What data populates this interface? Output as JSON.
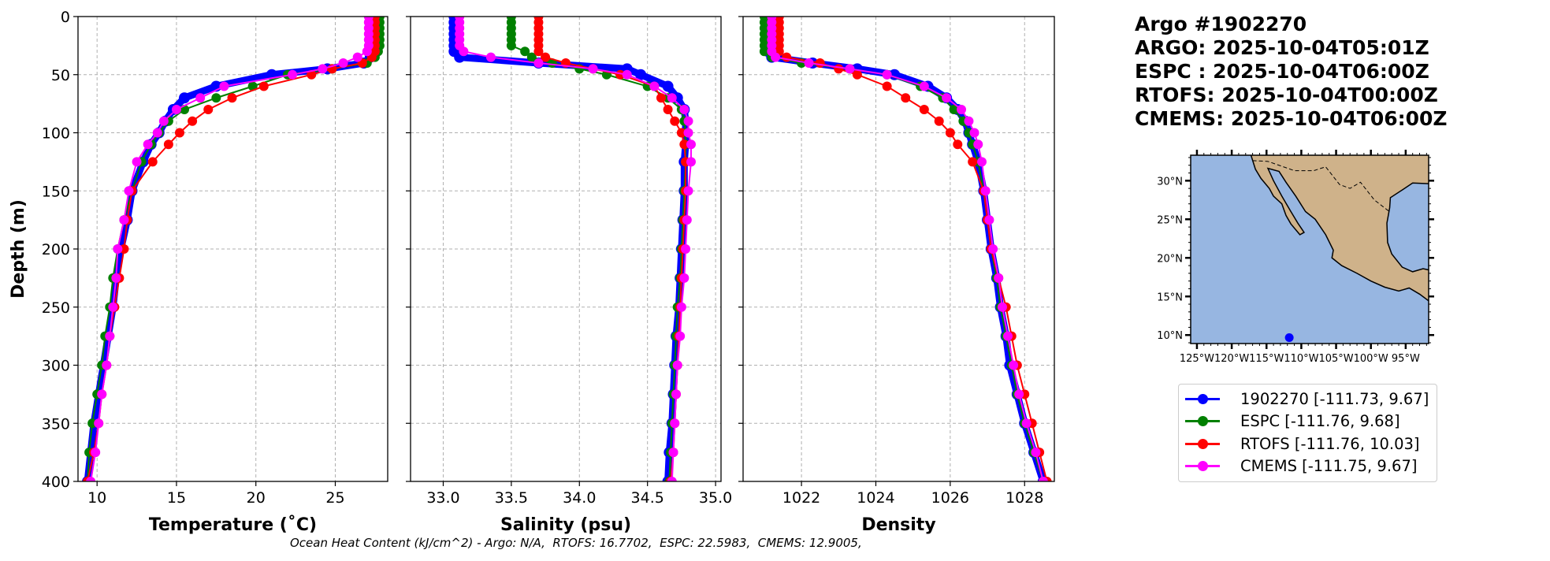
{
  "header": {
    "lines": [
      "Argo #1902270",
      "ARGO: 2025-10-04T05:01Z",
      "ESPC : 2025-10-04T06:00Z",
      "RTOFS: 2025-10-04T00:00Z",
      "CMEMS: 2025-10-04T06:00Z"
    ]
  },
  "footer": "Ocean Heat Content (kJ/cm^2) - Argo: N/A,  RTOFS: 16.7702,  ESPC: 22.5983,  CMEMS: 12.9005,",
  "legend": [
    {
      "label": "1902270 [-111.73, 9.67]",
      "color": "#0000ff"
    },
    {
      "label": "ESPC [-111.76, 9.68]",
      "color": "#008000"
    },
    {
      "label": "RTOFS [-111.76, 10.03]",
      "color": "#ff0000"
    },
    {
      "label": "CMEMS [-111.75, 9.67]",
      "color": "#ff00ff"
    }
  ],
  "map": {
    "lon_ticks": [
      "125°W",
      "120°W",
      "115°W",
      "110°W",
      "105°W",
      "100°W",
      "95°W"
    ],
    "lon_values": [
      -125,
      -120,
      -115,
      -110,
      -105,
      -100,
      -95
    ],
    "lat_ticks": [
      "30°N",
      "25°N",
      "20°N",
      "15°N",
      "10°N"
    ],
    "lat_values": [
      30,
      25,
      20,
      15,
      10
    ],
    "lon_range": [
      -125.9,
      -91.7
    ],
    "lat_range": [
      8.9,
      33.3
    ],
    "float_position": [
      -111.73,
      9.67
    ],
    "ocean_color": "#97b6e1",
    "land_color": "#cfb28a"
  },
  "chart_data": [
    {
      "type": "line",
      "xlabel": "Temperature (˚C)",
      "ylabel": "Depth (m)",
      "xlim": [
        8.8,
        28.3
      ],
      "ylim": [
        400,
        0
      ],
      "xticks": [
        "10",
        "15",
        "20",
        "25"
      ],
      "xtick_values": [
        10,
        15,
        20,
        25
      ],
      "yticks": [
        "0",
        "50",
        "100",
        "150",
        "200",
        "250",
        "300",
        "350",
        "400"
      ],
      "ytick_values": [
        0,
        50,
        100,
        150,
        200,
        250,
        300,
        350,
        400
      ],
      "grid": true,
      "field": "temperature"
    },
    {
      "type": "line",
      "xlabel": "Salinity (psu)",
      "xlim": [
        32.76,
        35.04
      ],
      "ylim": [
        400,
        0
      ],
      "xticks": [
        "33.0",
        "33.5",
        "34.0",
        "34.5",
        "35.0"
      ],
      "xtick_values": [
        33.0,
        33.5,
        34.0,
        34.5,
        35.0
      ],
      "ytick_values": [
        0,
        50,
        100,
        150,
        200,
        250,
        300,
        350,
        400
      ],
      "grid": true,
      "field": "salinity"
    },
    {
      "type": "line",
      "xlabel": "Density",
      "xlim": [
        1020.43,
        1028.8
      ],
      "ylim": [
        400,
        0
      ],
      "xticks": [
        "1022",
        "1024",
        "1026",
        "1028"
      ],
      "xtick_values": [
        1022,
        1024,
        1026,
        1028
      ],
      "ytick_values": [
        0,
        50,
        100,
        150,
        200,
        250,
        300,
        350,
        400
      ],
      "grid": true,
      "field": "density"
    }
  ],
  "series": [
    {
      "name": "1902270",
      "color": "#0000ff",
      "depth": [
        0,
        5,
        10,
        15,
        20,
        25,
        30,
        35,
        40,
        45,
        50,
        60,
        70,
        80,
        90,
        100,
        110,
        125,
        150,
        175,
        200,
        225,
        250,
        275,
        300,
        325,
        350,
        375,
        400
      ],
      "temperature": [
        27.5,
        27.5,
        27.5,
        27.5,
        27.5,
        27.5,
        27.4,
        27.2,
        26.8,
        24.5,
        21,
        17.5,
        15.5,
        14.8,
        14.3,
        13.9,
        13.4,
        12.9,
        12.2,
        11.9,
        11.5,
        11.2,
        11,
        10.7,
        10.4,
        10.1,
        9.8,
        9.6,
        9.4
      ],
      "salinity": [
        33.08,
        33.08,
        33.08,
        33.08,
        33.08,
        33.08,
        33.08,
        33.12,
        33.7,
        34.35,
        34.45,
        34.65,
        34.72,
        34.77,
        34.78,
        34.78,
        34.78,
        34.77,
        34.77,
        34.76,
        34.75,
        34.74,
        34.73,
        34.71,
        34.7,
        34.69,
        34.68,
        34.66,
        34.65
      ],
      "density": [
        1021.1,
        1021.1,
        1021.1,
        1021.1,
        1021.1,
        1021.1,
        1021.1,
        1021.2,
        1022.3,
        1023.5,
        1024.5,
        1025.4,
        1025.9,
        1026.2,
        1026.4,
        1026.5,
        1026.6,
        1026.75,
        1026.9,
        1027.0,
        1027.1,
        1027.25,
        1027.35,
        1027.5,
        1027.6,
        1027.8,
        1028.0,
        1028.25,
        1028.5
      ]
    },
    {
      "name": "ESPC",
      "color": "#008000",
      "depth": [
        0,
        5,
        10,
        15,
        20,
        25,
        30,
        35,
        40,
        45,
        50,
        60,
        70,
        80,
        90,
        100,
        110,
        125,
        150,
        175,
        200,
        225,
        250,
        275,
        300,
        325,
        350,
        375,
        400
      ],
      "temperature": [
        27.8,
        27.8,
        27.8,
        27.8,
        27.8,
        27.8,
        27.7,
        27.5,
        27,
        24.8,
        22,
        19.8,
        17.5,
        15.5,
        14.5,
        13.9,
        13.4,
        12.8,
        12.2,
        11.7,
        11.3,
        11.0,
        10.8,
        10.5,
        10.3,
        10.0,
        9.7,
        9.5,
        9.4
      ],
      "salinity": [
        33.5,
        33.5,
        33.5,
        33.5,
        33.5,
        33.5,
        33.6,
        33.65,
        33.8,
        34.0,
        34.2,
        34.5,
        34.65,
        34.75,
        34.77,
        34.78,
        34.78,
        34.78,
        34.77,
        34.76,
        34.75,
        34.74,
        34.72,
        34.71,
        34.7,
        34.69,
        34.68,
        34.67,
        34.66
      ],
      "density": [
        1021.0,
        1021.0,
        1021.0,
        1021.0,
        1021.0,
        1021.0,
        1021.0,
        1021.2,
        1022.0,
        1023.3,
        1024.3,
        1025.2,
        1025.8,
        1026.1,
        1026.35,
        1026.5,
        1026.6,
        1026.75,
        1026.9,
        1027.0,
        1027.1,
        1027.25,
        1027.35,
        1027.5,
        1027.65,
        1027.8,
        1028.0,
        1028.25,
        1028.5
      ]
    },
    {
      "name": "RTOFS",
      "color": "#ff0000",
      "depth": [
        0,
        5,
        10,
        15,
        20,
        25,
        30,
        35,
        40,
        45,
        50,
        60,
        70,
        80,
        90,
        100,
        110,
        125,
        150,
        175,
        200,
        225,
        250,
        275,
        300,
        325,
        350,
        375,
        400
      ],
      "temperature": [
        27.5,
        27.5,
        27.5,
        27.5,
        27.5,
        27.5,
        27.5,
        27.3,
        26.7,
        24.8,
        23.5,
        20.5,
        18.5,
        17,
        16,
        15.2,
        14.5,
        13.5,
        12.2,
        11.9,
        11.7,
        11.4,
        11.1,
        10.8,
        10.6,
        10.3,
        10.1,
        9.8,
        9.4
      ],
      "salinity": [
        33.7,
        33.7,
        33.7,
        33.7,
        33.7,
        33.7,
        33.7,
        33.75,
        33.9,
        34.1,
        34.3,
        34.55,
        34.6,
        34.65,
        34.7,
        34.75,
        34.77,
        34.78,
        34.78,
        34.77,
        34.76,
        34.75,
        34.74,
        34.73,
        34.72,
        34.71,
        34.7,
        34.69,
        34.67
      ],
      "density": [
        1021.4,
        1021.4,
        1021.4,
        1021.4,
        1021.4,
        1021.4,
        1021.4,
        1021.6,
        1022.5,
        1023.0,
        1023.5,
        1024.3,
        1024.8,
        1025.3,
        1025.7,
        1026.0,
        1026.2,
        1026.6,
        1026.9,
        1027.0,
        1027.1,
        1027.3,
        1027.5,
        1027.65,
        1027.8,
        1028.0,
        1028.2,
        1028.4,
        1028.6
      ]
    },
    {
      "name": "CMEMS",
      "color": "#ff00ff",
      "depth": [
        0,
        5,
        10,
        15,
        20,
        25,
        30,
        35,
        40,
        45,
        50,
        60,
        70,
        80,
        90,
        100,
        110,
        125,
        150,
        175,
        200,
        225,
        250,
        275,
        300,
        325,
        350,
        375,
        400
      ],
      "temperature": [
        27.1,
        27.1,
        27.1,
        27.1,
        27.1,
        27.1,
        27.0,
        26.4,
        25.5,
        24.2,
        22.3,
        18,
        16.5,
        15,
        14.2,
        13.8,
        13.2,
        12.5,
        12,
        11.7,
        11.3,
        11.2,
        11,
        10.8,
        10.6,
        10.3,
        10.1,
        9.9,
        9.6
      ],
      "salinity": [
        33.12,
        33.12,
        33.12,
        33.12,
        33.12,
        33.12,
        33.15,
        33.35,
        33.7,
        34.1,
        34.35,
        34.55,
        34.68,
        34.77,
        34.8,
        34.8,
        34.82,
        34.82,
        34.8,
        34.79,
        34.78,
        34.77,
        34.75,
        34.74,
        34.72,
        34.71,
        34.7,
        34.69,
        34.68
      ],
      "density": [
        1021.2,
        1021.2,
        1021.2,
        1021.2,
        1021.2,
        1021.2,
        1021.2,
        1021.3,
        1022.2,
        1023.3,
        1024.3,
        1025.3,
        1025.9,
        1026.3,
        1026.5,
        1026.65,
        1026.75,
        1026.85,
        1026.95,
        1027.05,
        1027.15,
        1027.3,
        1027.4,
        1027.55,
        1027.7,
        1027.85,
        1028.05,
        1028.3,
        1028.5
      ]
    }
  ]
}
